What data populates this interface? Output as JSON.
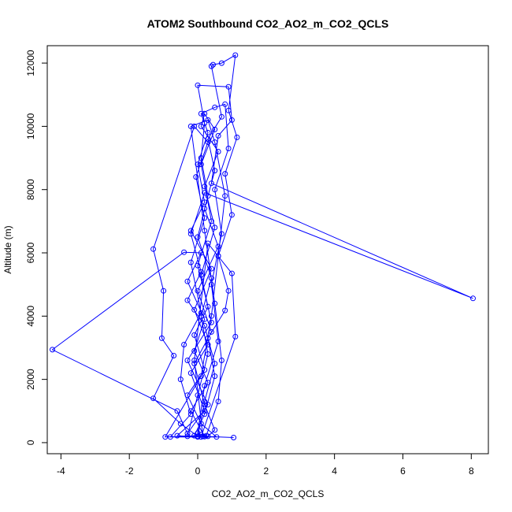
{
  "chart_data": {
    "type": "line",
    "title": "ATOM2 Southbound CO2_AO2_m_CO2_QCLS",
    "xlabel": "CO2_AO2_m_CO2_QCLS",
    "ylabel": "Altitude (m)",
    "xlim": [
      -4.4,
      8.5
    ],
    "ylim": [
      -350,
      12550
    ],
    "xticks": [
      -4,
      -2,
      0,
      2,
      4,
      6,
      8
    ],
    "yticks": [
      0,
      2000,
      4000,
      6000,
      8000,
      10000,
      12000
    ],
    "xtick_labels": [
      "-4",
      "-2",
      "0",
      "2",
      "4",
      "6",
      "8"
    ],
    "ytick_labels": [
      "0",
      "2000",
      "4000",
      "6000",
      "8000",
      "10000",
      "12000"
    ],
    "series_color": "#0000ff",
    "marker": "open-circle",
    "points": [
      [
        0.1,
        250
      ],
      [
        0.3,
        200
      ],
      [
        0.5,
        400
      ],
      [
        0.2,
        1200
      ],
      [
        -0.1,
        2500
      ],
      [
        0.4,
        3500
      ],
      [
        0.0,
        4800
      ],
      [
        0.6,
        6200
      ],
      [
        0.2,
        7400
      ],
      [
        0.5,
        8600
      ],
      [
        0.3,
        9600
      ],
      [
        0.7,
        10300
      ],
      [
        0.4,
        11900
      ],
      [
        0.45,
        11950
      ],
      [
        0.7,
        12000
      ],
      [
        1.1,
        12250
      ],
      [
        0.9,
        10500
      ],
      [
        1.15,
        9650
      ],
      [
        0.8,
        8500
      ],
      [
        1.0,
        7200
      ],
      [
        0.6,
        5900
      ],
      [
        0.9,
        4800
      ],
      [
        0.8,
        4180
      ],
      [
        0.3,
        3300
      ],
      [
        0.5,
        2100
      ],
      [
        0.2,
        900
      ],
      [
        -0.1,
        220
      ],
      [
        -0.3,
        200
      ],
      [
        0.0,
        1500
      ],
      [
        0.3,
        2800
      ],
      [
        0.1,
        4000
      ],
      [
        0.4,
        5200
      ],
      [
        0.0,
        6500
      ],
      [
        0.3,
        7800
      ],
      [
        0.1,
        9000
      ],
      [
        0.2,
        10100
      ],
      [
        0.0,
        11300
      ],
      [
        0.9,
        11250
      ],
      [
        1.0,
        10200
      ],
      [
        0.6,
        9700
      ],
      [
        0.4,
        8200
      ],
      [
        8.05,
        4560
      ],
      [
        0.2,
        7900
      ],
      [
        -0.2,
        6600
      ],
      [
        0.1,
        5400
      ],
      [
        -0.3,
        4500
      ],
      [
        0.2,
        3700
      ],
      [
        0.5,
        2500
      ],
      [
        0.2,
        1300
      ],
      [
        0.0,
        180
      ],
      [
        -0.6,
        220
      ],
      [
        0.2,
        1000
      ],
      [
        -0.2,
        2200
      ],
      [
        0.3,
        3100
      ],
      [
        -0.1,
        4200
      ],
      [
        0.4,
        5500
      ],
      [
        -0.2,
        6700
      ],
      [
        0.2,
        7600
      ],
      [
        0.0,
        8800
      ],
      [
        0.3,
        9800
      ],
      [
        0.1,
        10400
      ],
      [
        0.5,
        10600
      ],
      [
        0.8,
        10700
      ],
      [
        0.9,
        9300
      ],
      [
        0.5,
        8000
      ],
      [
        0.7,
        6600
      ],
      [
        0.4,
        5000
      ],
      [
        0.6,
        3200
      ],
      [
        0.2,
        1800
      ],
      [
        0.0,
        300
      ],
      [
        0.2,
        190
      ],
      [
        -0.2,
        1000
      ],
      [
        0.3,
        1900
      ],
      [
        -0.1,
        2900
      ],
      [
        0.2,
        3900
      ],
      [
        -0.3,
        5100
      ],
      [
        0.1,
        6000
      ],
      [
        -0.4,
        6020
      ],
      [
        -4.25,
        2940
      ],
      [
        -0.6,
        1000
      ],
      [
        -0.3,
        290
      ],
      [
        0.3,
        1200
      ],
      [
        -0.3,
        2600
      ],
      [
        0.4,
        3800
      ],
      [
        0.1,
        5300
      ],
      [
        0.5,
        6800
      ],
      [
        0.2,
        8100
      ],
      [
        0.6,
        9200
      ],
      [
        0.1,
        10000
      ],
      [
        0.2,
        10400
      ],
      [
        0.5,
        9900
      ],
      [
        0.1,
        8800
      ],
      [
        0.4,
        7000
      ],
      [
        0.0,
        5600
      ],
      [
        0.3,
        4300
      ],
      [
        -0.1,
        3400
      ],
      [
        0.2,
        2300
      ],
      [
        -0.3,
        1500
      ],
      [
        0.1,
        600
      ],
      [
        0.55,
        180
      ],
      [
        -0.8,
        180
      ],
      [
        -0.2,
        900
      ],
      [
        -0.5,
        2000
      ],
      [
        -0.4,
        3100
      ],
      [
        0.1,
        4100
      ],
      [
        -0.2,
        5700
      ],
      [
        0.2,
        7100
      ],
      [
        -0.05,
        8400
      ],
      [
        0.3,
        9500
      ],
      [
        -0.1,
        10000
      ],
      [
        -1.3,
        6120
      ],
      [
        -1.0,
        4800
      ],
      [
        -1.05,
        3300
      ],
      [
        -0.7,
        2750
      ],
      [
        -1.3,
        1400
      ],
      [
        -0.5,
        600
      ],
      [
        0.0,
        200
      ],
      [
        -0.95,
        180
      ],
      [
        0.1,
        2100
      ],
      [
        0.4,
        4000
      ],
      [
        0.6,
        5900
      ],
      [
        0.8,
        7800
      ],
      [
        0.5,
        9500
      ],
      [
        0.3,
        10200
      ],
      [
        -0.2,
        10000
      ],
      [
        0.2,
        6700
      ],
      [
        0.5,
        4400
      ],
      [
        0.7,
        2600
      ],
      [
        0.6,
        1300
      ],
      [
        0.25,
        220
      ],
      [
        0.1,
        180
      ],
      [
        1.1,
        3350
      ],
      [
        1.0,
        5350
      ],
      [
        0.3,
        6300
      ],
      [
        -0.1,
        2600
      ],
      [
        0.15,
        200
      ],
      [
        1.05,
        160
      ]
    ]
  }
}
